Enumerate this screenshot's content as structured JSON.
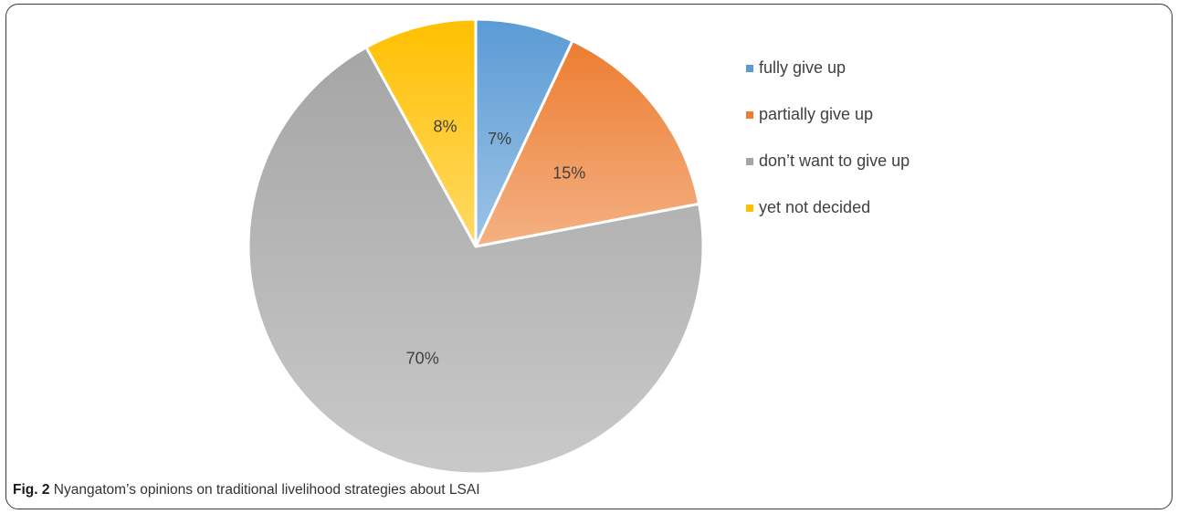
{
  "caption": {
    "label": "Fig. 2",
    "text": "Nyangatom’s opinions on traditional livelihood strategies about LSAI"
  },
  "chart_data": {
    "type": "pie",
    "title": "",
    "start_angle_degrees": 0,
    "direction": "clockwise",
    "legend_position": "right",
    "slices": [
      {
        "label": "fully give up",
        "value": 7,
        "display": "7%",
        "color": "#5b9bd5",
        "color_light": "#9dc3e6"
      },
      {
        "label": "partially give up",
        "value": 15,
        "display": "15%",
        "color": "#ed7d31",
        "color_light": "#f4b183"
      },
      {
        "label": "don’t want to give up",
        "value": 70,
        "display": "70%",
        "color": "#a5a5a5",
        "color_light": "#c9c9c9"
      },
      {
        "label": "yet not decided",
        "value": 8,
        "display": "8%",
        "color": "#ffc000",
        "color_light": "#ffd966"
      }
    ]
  }
}
